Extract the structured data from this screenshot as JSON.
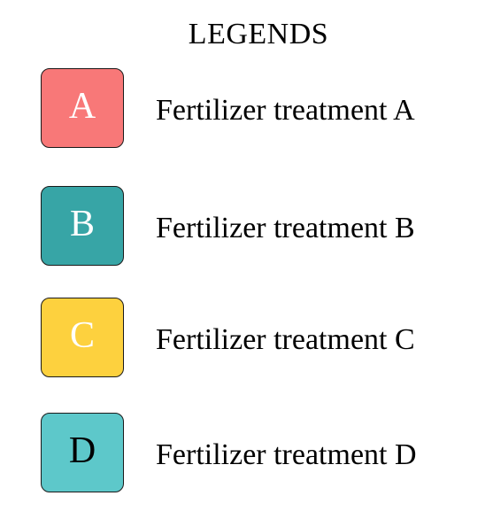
{
  "legend": {
    "title": "LEGENDS",
    "items": [
      {
        "letter": "A",
        "label": "Fertilizer treatment A",
        "color": "#f87878",
        "text_color": "#ffffff"
      },
      {
        "letter": "B",
        "label": "Fertilizer treatment B",
        "color": "#37a5a6",
        "text_color": "#ffffff"
      },
      {
        "letter": "C",
        "label": "Fertilizer treatment C",
        "color": "#fdd13e",
        "text_color": "#ffffff"
      },
      {
        "letter": "D",
        "label": "Fertilizer treatment D",
        "color": "#5dc8ca",
        "text_color": "#000000"
      }
    ]
  }
}
